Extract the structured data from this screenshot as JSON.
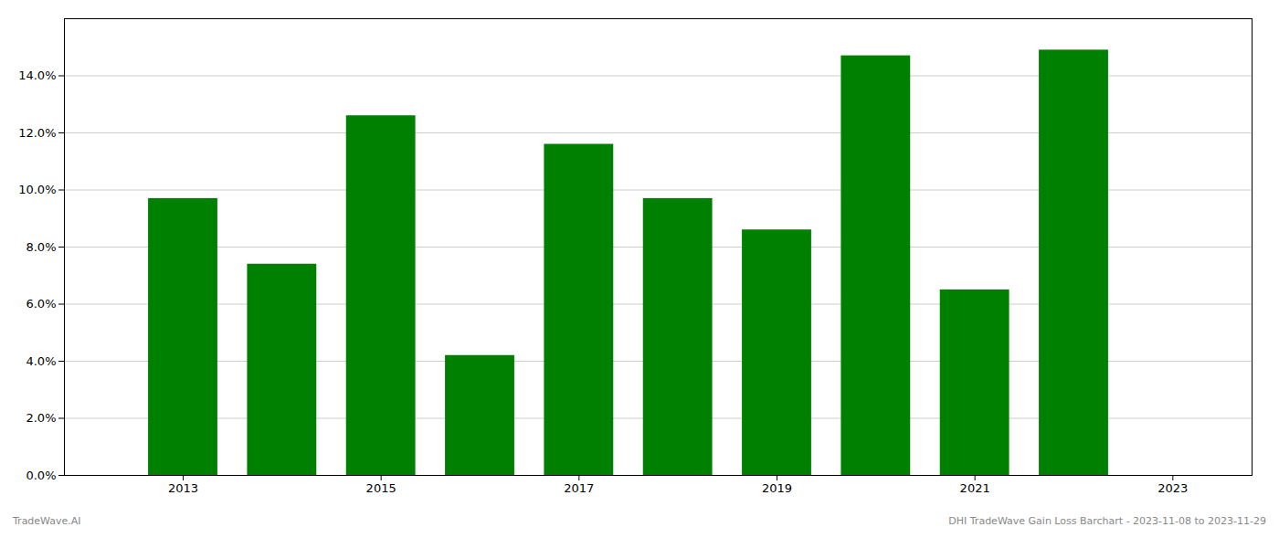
{
  "chart_data": {
    "type": "bar",
    "x": [
      2013,
      2014,
      2015,
      2016,
      2017,
      2018,
      2019,
      2020,
      2021,
      2022
    ],
    "values": [
      0.097,
      0.074,
      0.126,
      0.042,
      0.116,
      0.097,
      0.086,
      0.147,
      0.065,
      0.149
    ],
    "color": "#008000",
    "xlim": [
      2011.8,
      2023.8
    ],
    "xticks": [
      2013,
      2015,
      2017,
      2019,
      2021,
      2023
    ],
    "ylim": [
      0,
      0.16
    ],
    "yticks": [
      {
        "value": 0.0,
        "label": "0.0%"
      },
      {
        "value": 0.02,
        "label": "2.0%"
      },
      {
        "value": 0.04,
        "label": "4.0%"
      },
      {
        "value": 0.06,
        "label": "6.0%"
      },
      {
        "value": 0.08,
        "label": "8.0%"
      },
      {
        "value": 0.1,
        "label": "10.0%"
      },
      {
        "value": 0.12,
        "label": "12.0%"
      },
      {
        "value": 0.14,
        "label": "14.0%"
      }
    ],
    "grid": true,
    "annotations": [
      "TradeWave.AI",
      "DHI TradeWave Gain Loss Barchart - 2023-11-08 to 2023-11-29"
    ]
  }
}
